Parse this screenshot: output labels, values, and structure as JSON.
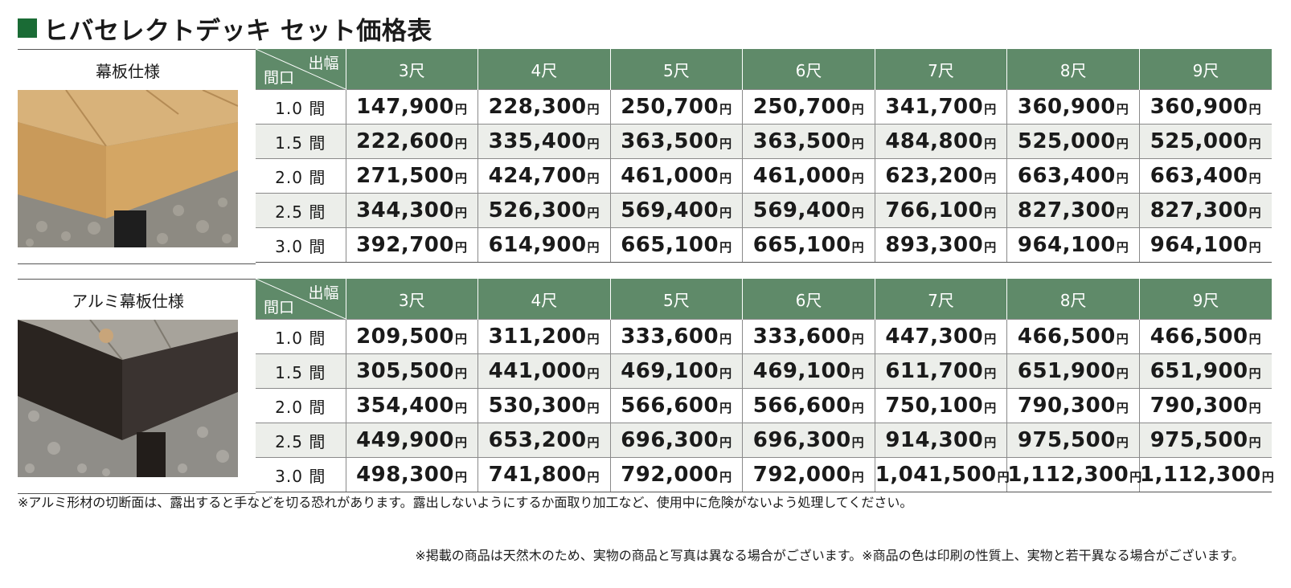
{
  "title": "ヒバセレクトデッキ セット価格表",
  "colors": {
    "accent": "#1a6b35",
    "header_bg": "#5f8a69"
  },
  "corner": {
    "top": "出幅",
    "bottom": "間口"
  },
  "columns": [
    "3尺",
    "4尺",
    "5尺",
    "6尺",
    "7尺",
    "8尺",
    "9尺"
  ],
  "yen": "円",
  "sections": [
    {
      "label": "幕板仕様",
      "rows": [
        {
          "span": "1.0 間",
          "prices": [
            "147,900",
            "228,300",
            "250,700",
            "250,700",
            "341,700",
            "360,900",
            "360,900"
          ]
        },
        {
          "span": "1.5 間",
          "prices": [
            "222,600",
            "335,400",
            "363,500",
            "363,500",
            "484,800",
            "525,000",
            "525,000"
          ]
        },
        {
          "span": "2.0 間",
          "prices": [
            "271,500",
            "424,700",
            "461,000",
            "461,000",
            "623,200",
            "663,400",
            "663,400"
          ]
        },
        {
          "span": "2.5 間",
          "prices": [
            "344,300",
            "526,300",
            "569,400",
            "569,400",
            "766,100",
            "827,300",
            "827,300"
          ]
        },
        {
          "span": "3.0 間",
          "prices": [
            "392,700",
            "614,900",
            "665,100",
            "665,100",
            "893,300",
            "964,100",
            "964,100"
          ]
        }
      ]
    },
    {
      "label": "アルミ幕板仕様",
      "rows": [
        {
          "span": "1.0 間",
          "prices": [
            "209,500",
            "311,200",
            "333,600",
            "333,600",
            "447,300",
            "466,500",
            "466,500"
          ]
        },
        {
          "span": "1.5 間",
          "prices": [
            "305,500",
            "441,000",
            "469,100",
            "469,100",
            "611,700",
            "651,900",
            "651,900"
          ]
        },
        {
          "span": "2.0 間",
          "prices": [
            "354,400",
            "530,300",
            "566,600",
            "566,600",
            "750,100",
            "790,300",
            "790,300"
          ]
        },
        {
          "span": "2.5 間",
          "prices": [
            "449,900",
            "653,200",
            "696,300",
            "696,300",
            "914,300",
            "975,500",
            "975,500"
          ]
        },
        {
          "span": "3.0 間",
          "prices": [
            "498,300",
            "741,800",
            "792,000",
            "792,000",
            "1,041,500",
            "1,112,300",
            "1,112,300"
          ]
        }
      ]
    }
  ],
  "notes": {
    "aluminum": "※アルミ形材の切断面は、露出すると手などを切る恐れがあります。露出しないようにするか面取り加工など、使用中に危険がないよう処理してください。",
    "disclaimer": "※掲載の商品は天然木のため、実物の商品と写真は異なる場合がございます。※商品の色は印刷の性質上、実物と若干異なる場合がございます。"
  }
}
